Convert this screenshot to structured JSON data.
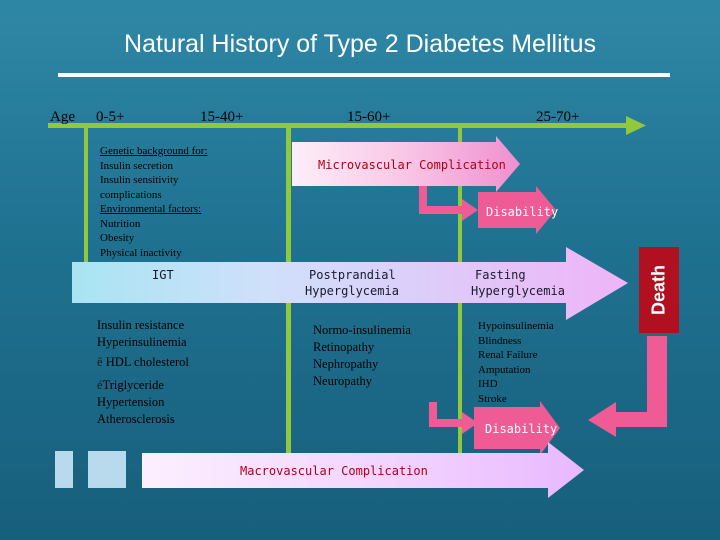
{
  "title": "Natural History of Type 2 Diabetes Mellitus",
  "timeline": {
    "age_label": "Age",
    "ages": [
      "0-5+",
      "15-40+",
      "15-60+",
      "25-70+"
    ]
  },
  "genetic": {
    "heading": "Genetic background for:",
    "items": [
      "Insulin secretion",
      "Insulin sensitivity",
      "complications"
    ],
    "env_heading": "Environmental factors:",
    "env_items": [
      "Nutrition",
      "Obesity",
      "Physical inactivity"
    ]
  },
  "labels": {
    "microvascular": "Microvascular Complication",
    "disability_top": "Disability",
    "igt": "IGT",
    "postprandial": [
      "Postprandial",
      "Hyperglycemia"
    ],
    "fasting": [
      "Fasting",
      "Hyperglycemia"
    ],
    "death": "Death",
    "disability_bottom": "Disability",
    "macrovascular": "Macrovascular Complication"
  },
  "col1": {
    "lines": [
      "Insulin resistance",
      "Hyperinsulinemia"
    ],
    "hdl_symbol": "ê",
    "hdl": "HDL cholesterol",
    "tg_symbol": "é",
    "tg": "Triglyceride",
    "after": [
      "Hypertension",
      "Atherosclerosis"
    ]
  },
  "col2": [
    "Normo-insulinemia",
    "Retinopathy",
    "Nephropathy",
    "Neuropathy"
  ],
  "col3": [
    "Hypoinsulinemia",
    "Blindness",
    "Renal Failure",
    "Amputation",
    "IHD",
    "Stroke"
  ],
  "colors": {
    "accent_green": "#92c83e",
    "arrow_pink": "#ee5b95",
    "arrow_light": "#ecd4ff",
    "death_red": "#b01020",
    "label_red": "#b00018",
    "label_white": "#ffffff",
    "arrow_text": "#1a1a2e"
  }
}
